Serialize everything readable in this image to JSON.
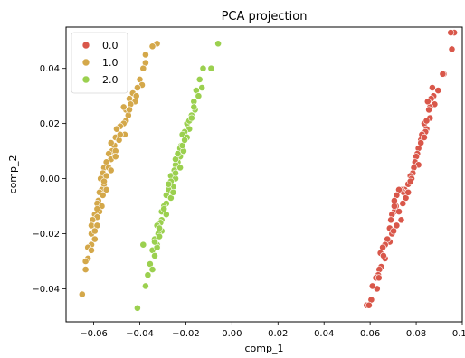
{
  "chart_data": {
    "type": "scatter",
    "title": "PCA projection",
    "xlabel": "comp_1",
    "ylabel": "comp_2",
    "xlim": [
      -0.072,
      0.1
    ],
    "ylim": [
      -0.052,
      0.055
    ],
    "xticks": [
      -0.06,
      -0.04,
      -0.02,
      0.0,
      0.02,
      0.04,
      0.06,
      0.08,
      0.1
    ],
    "xtick_labels": [
      "−0.06",
      "−0.04",
      "−0.02",
      "0.00",
      "0.02",
      "0.04",
      "0.06",
      "0.08",
      "0.10"
    ],
    "yticks": [
      -0.04,
      -0.02,
      0.0,
      0.02,
      0.04
    ],
    "ytick_labels": [
      "−0.04",
      "−0.02",
      "0.00",
      "0.02",
      "0.04"
    ],
    "grid": false,
    "legend_position": "top-left",
    "series": [
      {
        "name": "0.0",
        "color": "#d9574a",
        "points": [
          [
            0.0965,
            0.053
          ],
          [
            0.095,
            0.053
          ],
          [
            0.0955,
            0.047
          ],
          [
            0.092,
            0.038
          ],
          [
            0.0915,
            0.038
          ],
          [
            0.0895,
            0.032
          ],
          [
            0.0875,
            0.03
          ],
          [
            0.088,
            0.027
          ],
          [
            0.0865,
            0.029
          ],
          [
            0.086,
            0.026
          ],
          [
            0.0855,
            0.025
          ],
          [
            0.087,
            0.033
          ],
          [
            0.085,
            0.028
          ],
          [
            0.086,
            0.022
          ],
          [
            0.0835,
            0.02
          ],
          [
            0.0845,
            0.018
          ],
          [
            0.084,
            0.017
          ],
          [
            0.0825,
            0.016
          ],
          [
            0.082,
            0.014
          ],
          [
            0.081,
            0.011
          ],
          [
            0.0805,
            0.009
          ],
          [
            0.08,
            0.008
          ],
          [
            0.0795,
            0.006
          ],
          [
            0.081,
            0.005
          ],
          [
            0.079,
            0.004
          ],
          [
            0.0785,
            0.002
          ],
          [
            0.0775,
            0.001
          ],
          [
            0.078,
            0.0
          ],
          [
            0.0765,
            -0.002
          ],
          [
            0.075,
            -0.004
          ],
          [
            0.0745,
            -0.005
          ],
          [
            0.0735,
            -0.004
          ],
          [
            0.0725,
            -0.004
          ],
          [
            0.0715,
            -0.006
          ],
          [
            0.0705,
            -0.008
          ],
          [
            0.0712,
            -0.01
          ],
          [
            0.0705,
            -0.012
          ],
          [
            0.0695,
            -0.013
          ],
          [
            0.069,
            -0.015
          ],
          [
            0.0685,
            -0.018
          ],
          [
            0.0695,
            -0.02
          ],
          [
            0.0685,
            -0.023
          ],
          [
            0.0675,
            -0.022
          ],
          [
            0.0665,
            -0.024
          ],
          [
            0.0655,
            -0.025
          ],
          [
            0.0645,
            -0.027
          ],
          [
            0.0665,
            -0.029
          ],
          [
            0.0648,
            -0.032
          ],
          [
            0.064,
            -0.033
          ],
          [
            0.0635,
            -0.035
          ],
          [
            0.0625,
            -0.036
          ],
          [
            0.063,
            -0.04
          ],
          [
            0.061,
            -0.039
          ],
          [
            0.0605,
            -0.044
          ],
          [
            0.0585,
            -0.046
          ],
          [
            0.0595,
            -0.046
          ],
          [
            0.0755,
            -0.007
          ],
          [
            0.0775,
            -0.001
          ],
          [
            0.0725,
            -0.012
          ],
          [
            0.082,
            0.013
          ],
          [
            0.0735,
            -0.015
          ],
          [
            0.0715,
            -0.017
          ],
          [
            0.0835,
            0.015
          ],
          [
            0.0845,
            0.021
          ],
          [
            0.0765,
            -0.005
          ],
          [
            0.0742,
            -0.009
          ],
          [
            0.0702,
            -0.019
          ],
          [
            0.0658,
            -0.028
          ],
          [
            0.0638,
            -0.036
          ],
          [
            0.0705,
            -0.01
          ]
        ]
      },
      {
        "name": "1.0",
        "color": "#d4a84a",
        "points": [
          [
            -0.0325,
            0.049
          ],
          [
            -0.0345,
            0.048
          ],
          [
            -0.0375,
            0.045
          ],
          [
            -0.0375,
            0.042
          ],
          [
            -0.0385,
            0.04
          ],
          [
            -0.04,
            0.036
          ],
          [
            -0.039,
            0.034
          ],
          [
            -0.041,
            0.033
          ],
          [
            -0.043,
            0.031
          ],
          [
            -0.0445,
            0.029
          ],
          [
            -0.042,
            0.028
          ],
          [
            -0.044,
            0.027
          ],
          [
            -0.046,
            0.025
          ],
          [
            -0.047,
            0.026
          ],
          [
            -0.045,
            0.023
          ],
          [
            -0.046,
            0.021
          ],
          [
            -0.047,
            0.02
          ],
          [
            -0.0485,
            0.019
          ],
          [
            -0.05,
            0.018
          ],
          [
            -0.0505,
            0.015
          ],
          [
            -0.049,
            0.014
          ],
          [
            -0.051,
            0.012
          ],
          [
            -0.052,
            0.01
          ],
          [
            -0.0535,
            0.009
          ],
          [
            -0.0525,
            0.007
          ],
          [
            -0.0545,
            0.006
          ],
          [
            -0.0555,
            0.004
          ],
          [
            -0.0535,
            0.004
          ],
          [
            -0.056,
            0.002
          ],
          [
            -0.0545,
            0.001
          ],
          [
            -0.057,
            0.0
          ],
          [
            -0.0555,
            -0.002
          ],
          [
            -0.0565,
            -0.004
          ],
          [
            -0.0575,
            -0.005
          ],
          [
            -0.056,
            -0.006
          ],
          [
            -0.058,
            -0.008
          ],
          [
            -0.0585,
            -0.009
          ],
          [
            -0.0565,
            -0.01
          ],
          [
            -0.0575,
            -0.012
          ],
          [
            -0.0595,
            -0.013
          ],
          [
            -0.0585,
            -0.014
          ],
          [
            -0.0605,
            -0.015
          ],
          [
            -0.061,
            -0.017
          ],
          [
            -0.0585,
            -0.017
          ],
          [
            -0.061,
            -0.02
          ],
          [
            -0.0595,
            -0.022
          ],
          [
            -0.061,
            -0.024
          ],
          [
            -0.0625,
            -0.025
          ],
          [
            -0.061,
            -0.026
          ],
          [
            -0.0625,
            -0.029
          ],
          [
            -0.0635,
            -0.03
          ],
          [
            -0.0635,
            -0.033
          ],
          [
            -0.065,
            -0.042
          ],
          [
            -0.0545,
            -0.004
          ],
          [
            -0.0585,
            -0.011
          ],
          [
            -0.0465,
            0.016
          ],
          [
            -0.0525,
            0.013
          ],
          [
            -0.0505,
            0.01
          ],
          [
            -0.0555,
            -0.001
          ],
          [
            -0.0595,
            -0.019
          ],
          [
            -0.0485,
            0.016
          ],
          [
            -0.0525,
            0.003
          ],
          [
            -0.0445,
            0.025
          ],
          [
            -0.0415,
            0.03
          ],
          [
            -0.0505,
            0.008
          ]
        ]
      },
      {
        "name": "2.0",
        "color": "#9bd04f",
        "points": [
          [
            -0.006,
            0.049
          ],
          [
            -0.009,
            0.04
          ],
          [
            -0.0125,
            0.04
          ],
          [
            -0.014,
            0.036
          ],
          [
            -0.013,
            0.033
          ],
          [
            -0.0155,
            0.032
          ],
          [
            -0.0145,
            0.03
          ],
          [
            -0.0165,
            0.028
          ],
          [
            -0.016,
            0.025
          ],
          [
            -0.0175,
            0.023
          ],
          [
            -0.0185,
            0.021
          ],
          [
            -0.0195,
            0.02
          ],
          [
            -0.0185,
            0.018
          ],
          [
            -0.0205,
            0.017
          ],
          [
            -0.0215,
            0.016
          ],
          [
            -0.0195,
            0.015
          ],
          [
            -0.022,
            0.012
          ],
          [
            -0.0225,
            0.011
          ],
          [
            -0.021,
            0.01
          ],
          [
            -0.0225,
            0.008
          ],
          [
            -0.0235,
            0.006
          ],
          [
            -0.0245,
            0.005
          ],
          [
            -0.0225,
            0.004
          ],
          [
            -0.025,
            0.003
          ],
          [
            -0.0265,
            0.001
          ],
          [
            -0.0245,
            0.0
          ],
          [
            -0.0265,
            -0.001
          ],
          [
            -0.0255,
            -0.003
          ],
          [
            -0.0275,
            -0.004
          ],
          [
            -0.0285,
            -0.006
          ],
          [
            -0.0265,
            -0.007
          ],
          [
            -0.0285,
            -0.009
          ],
          [
            -0.0295,
            -0.01
          ],
          [
            -0.0305,
            -0.012
          ],
          [
            -0.0285,
            -0.013
          ],
          [
            -0.0305,
            -0.015
          ],
          [
            -0.031,
            -0.016
          ],
          [
            -0.0325,
            -0.017
          ],
          [
            -0.0305,
            -0.019
          ],
          [
            -0.032,
            -0.02
          ],
          [
            -0.0335,
            -0.022
          ],
          [
            -0.0325,
            -0.024
          ],
          [
            -0.0315,
            -0.021
          ],
          [
            -0.0345,
            -0.026
          ],
          [
            -0.0325,
            -0.025
          ],
          [
            -0.0335,
            -0.028
          ],
          [
            -0.0355,
            -0.031
          ],
          [
            -0.0345,
            -0.033
          ],
          [
            -0.0365,
            -0.035
          ],
          [
            -0.0375,
            -0.039
          ],
          [
            -0.0385,
            -0.024
          ],
          [
            -0.041,
            -0.047
          ],
          [
            -0.0215,
            0.012
          ],
          [
            -0.0245,
            0.002
          ],
          [
            -0.0205,
            0.014
          ],
          [
            -0.0275,
            -0.002
          ],
          [
            -0.0295,
            -0.011
          ],
          [
            -0.0185,
            0.021
          ],
          [
            -0.0245,
            0.007
          ],
          [
            -0.0335,
            -0.023
          ],
          [
            -0.0165,
            0.026
          ],
          [
            -0.0175,
            0.022
          ],
          [
            -0.0255,
            -0.005
          ],
          [
            -0.0315,
            -0.018
          ],
          [
            -0.0235,
            0.009
          ]
        ]
      }
    ]
  }
}
